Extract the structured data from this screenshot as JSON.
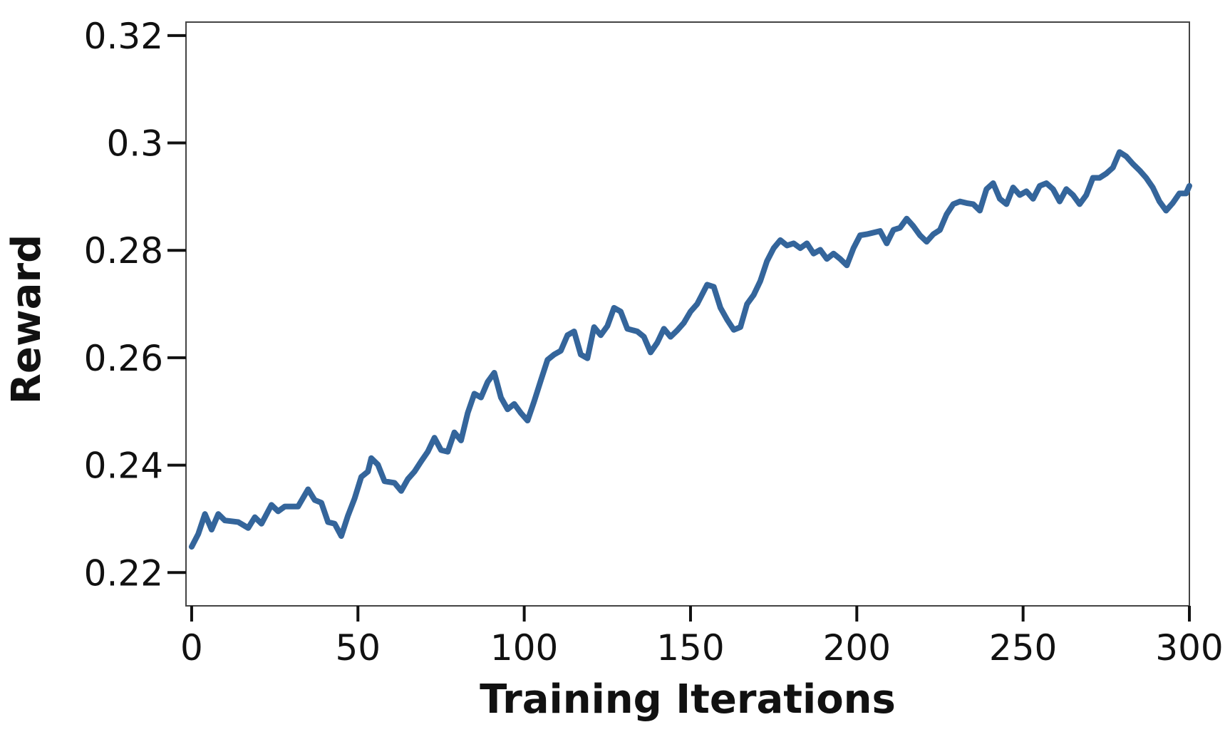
{
  "chart_data": {
    "type": "line",
    "x_label": "Training Iterations",
    "y_label": "Reward",
    "xlim": [
      -1.7,
      300
    ],
    "ylim": [
      0.2138,
      0.3225
    ],
    "xticks": [
      0,
      50,
      100,
      150,
      200,
      250,
      300
    ],
    "yticks": [
      0.22,
      0.24,
      0.26,
      0.28,
      0.3,
      0.32
    ],
    "series": [
      {
        "name": "Reward",
        "color": "#34659b",
        "x": [
          0,
          2,
          4,
          6,
          8,
          10,
          14,
          17,
          19,
          21,
          24,
          26,
          28,
          32,
          35,
          37,
          39,
          41,
          43,
          45,
          47,
          49,
          51,
          53,
          54,
          56,
          58,
          61,
          63,
          65,
          67,
          69,
          71,
          73,
          75,
          77,
          79,
          81,
          83,
          85,
          87,
          89,
          91,
          93,
          95,
          97,
          99,
          101,
          103,
          105,
          107,
          109,
          111,
          113,
          115,
          117,
          119,
          121,
          123,
          125,
          127,
          129,
          131,
          134,
          136,
          138,
          140,
          142,
          144,
          146,
          148,
          150,
          152,
          155,
          157,
          159,
          161,
          163,
          165,
          167,
          169,
          171,
          173,
          175,
          177,
          179,
          181,
          183,
          185,
          187,
          189,
          191,
          193,
          195,
          197,
          199,
          201,
          203,
          205,
          207,
          209,
          211,
          213,
          215,
          217,
          219,
          221,
          223,
          225,
          227,
          229,
          231,
          233,
          235,
          237,
          239,
          241,
          243,
          245,
          247,
          249,
          251,
          253,
          255,
          257,
          259,
          261,
          263,
          265,
          267,
          269,
          271,
          273,
          275,
          277,
          279,
          281,
          283,
          285,
          287,
          289,
          291,
          293,
          295,
          297,
          299,
          300
        ],
        "values": [
          0.2248,
          0.2272,
          0.2309,
          0.228,
          0.2309,
          0.2297,
          0.2294,
          0.2283,
          0.2303,
          0.2291,
          0.2326,
          0.2314,
          0.2323,
          0.2323,
          0.2355,
          0.2335,
          0.233,
          0.2294,
          0.2291,
          0.2268,
          0.2306,
          0.2338,
          0.2378,
          0.2388,
          0.2413,
          0.2401,
          0.237,
          0.2367,
          0.2352,
          0.2374,
          0.2388,
          0.2407,
          0.2425,
          0.2451,
          0.2428,
          0.2425,
          0.2461,
          0.2446,
          0.2497,
          0.2533,
          0.2526,
          0.2555,
          0.2572,
          0.2526,
          0.2504,
          0.2514,
          0.2497,
          0.2483,
          0.2519,
          0.2558,
          0.2596,
          0.2606,
          0.2613,
          0.2642,
          0.2649,
          0.2606,
          0.2599,
          0.2657,
          0.2642,
          0.2659,
          0.2693,
          0.2686,
          0.2654,
          0.2649,
          0.2639,
          0.261,
          0.2628,
          0.2654,
          0.2639,
          0.2651,
          0.2665,
          0.2686,
          0.27,
          0.2736,
          0.2732,
          0.2693,
          0.2671,
          0.2652,
          0.2657,
          0.27,
          0.2717,
          0.2743,
          0.278,
          0.2804,
          0.2819,
          0.2809,
          0.2813,
          0.2804,
          0.2813,
          0.2794,
          0.2801,
          0.2784,
          0.2794,
          0.2784,
          0.2772,
          0.2804,
          0.2828,
          0.283,
          0.2833,
          0.2836,
          0.2813,
          0.2838,
          0.2842,
          0.2859,
          0.2845,
          0.2828,
          0.2816,
          0.283,
          0.2838,
          0.2867,
          0.2886,
          0.2891,
          0.2888,
          0.2886,
          0.2874,
          0.2914,
          0.2925,
          0.2896,
          0.2886,
          0.2917,
          0.2903,
          0.291,
          0.2896,
          0.292,
          0.2925,
          0.2914,
          0.2891,
          0.2914,
          0.2903,
          0.2886,
          0.2903,
          0.2935,
          0.2935,
          0.2943,
          0.2954,
          0.2983,
          0.2975,
          0.2961,
          0.2949,
          0.2935,
          0.2917,
          0.2891,
          0.2874,
          0.2888,
          0.2906,
          0.2906,
          0.292
        ]
      }
    ]
  }
}
